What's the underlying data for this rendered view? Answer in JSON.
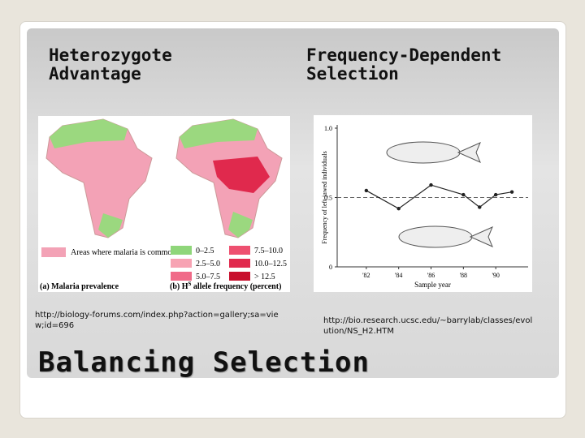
{
  "title": "Balancing Selection",
  "left": {
    "heading": "Heterozygote Advantage",
    "figure": {
      "legend_malaria": "Areas where malaria is common",
      "legend_freq": [
        {
          "label": "0–2.5",
          "color": "#8fd67a"
        },
        {
          "label": "2.5–5.0",
          "color": "#f7a3b3"
        },
        {
          "label": "5.0–7.5",
          "color": "#f06a88"
        },
        {
          "label": "7.5–10.0",
          "color": "#ee5070"
        },
        {
          "label": "10.0–12.5",
          "color": "#e12a4e"
        },
        {
          "label": "> 12.5",
          "color": "#c8102e"
        }
      ],
      "caption_a": "(a) Malaria prevalence",
      "caption_b": [
        "(b) H",
        "S",
        " allele frequency (percent)"
      ]
    },
    "source": "http://biology-forums.com/index.php?action=gallery;sa=view;id=696"
  },
  "right": {
    "heading": "Frequency-Dependent Selection",
    "chart": {
      "type": "line",
      "xlabel": "Sample year",
      "ylabel": "Frequency of left-jawed individuals",
      "x": [
        1982,
        1984,
        1986,
        1988,
        1989,
        1990,
        1991
      ],
      "values": [
        0.55,
        0.42,
        0.59,
        0.52,
        0.43,
        0.52,
        0.54
      ],
      "color": "#222222",
      "reference_line": 0.5,
      "xlim": [
        1980.2,
        1992
      ],
      "ylim": [
        0,
        1
      ],
      "xticks": [
        {
          "value": 1982,
          "label": "'82"
        },
        {
          "value": 1984,
          "label": "'84"
        },
        {
          "value": 1986,
          "label": "'86"
        },
        {
          "value": 1988,
          "label": "'88"
        },
        {
          "value": 1990,
          "label": "'90"
        }
      ],
      "yticks": [
        0,
        0.5,
        {
          "value": 1,
          "label": "1.0"
        }
      ]
    },
    "source": "http://bio.research.ucsc.edu/~barrylab/classes/evolution/NS_H2.HTM"
  }
}
